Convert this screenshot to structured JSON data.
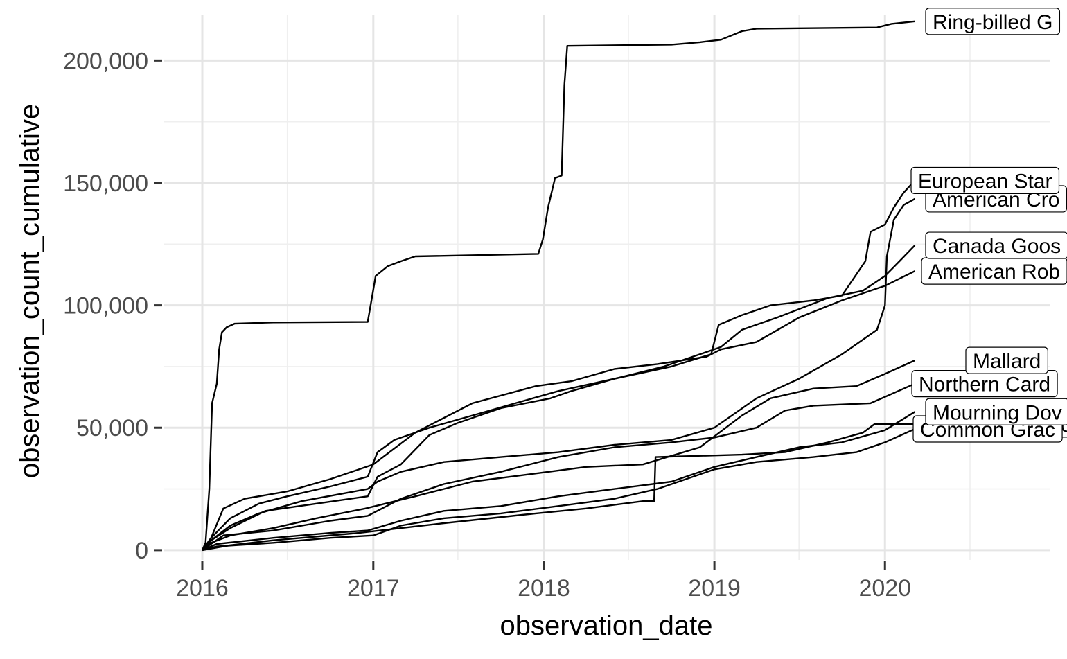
{
  "chart_data": {
    "type": "line",
    "title": "",
    "xlabel": "observation_date",
    "ylabel": "observation_count_cumulative",
    "x_ticks": [
      "2016",
      "2017",
      "2018",
      "2019",
      "2020"
    ],
    "y_ticks": [
      "0",
      "50,000",
      "100,000",
      "150,000",
      "200,000"
    ],
    "x_range": [
      "2015-10-10",
      "2020-12-20"
    ],
    "y_range": [
      -4000,
      218500
    ],
    "grid": true,
    "legend": "none",
    "series": [
      {
        "name": "Ring-billed G",
        "label_y": 216000,
        "points": [
          [
            "2016-01-01",
            0
          ],
          [
            "2016-01-08",
            3000
          ],
          [
            "2016-01-16",
            25000
          ],
          [
            "2016-01-22",
            60000
          ],
          [
            "2016-02-01",
            68000
          ],
          [
            "2016-02-06",
            82000
          ],
          [
            "2016-02-12",
            89000
          ],
          [
            "2016-02-22",
            91000
          ],
          [
            "2016-03-10",
            92500
          ],
          [
            "2016-06-01",
            93000
          ],
          [
            "2016-12-20",
            93200
          ],
          [
            "2016-12-28",
            102000
          ],
          [
            "2017-01-06",
            112000
          ],
          [
            "2017-02-01",
            116000
          ],
          [
            "2017-03-01",
            118000
          ],
          [
            "2017-04-01",
            120000
          ],
          [
            "2017-12-20",
            121000
          ],
          [
            "2017-12-30",
            127000
          ],
          [
            "2018-01-10",
            140000
          ],
          [
            "2018-01-25",
            152000
          ],
          [
            "2018-02-08",
            153000
          ],
          [
            "2018-02-14",
            190000
          ],
          [
            "2018-02-20",
            206000
          ],
          [
            "2018-10-01",
            206500
          ],
          [
            "2018-12-01",
            207500
          ],
          [
            "2019-01-15",
            208500
          ],
          [
            "2019-03-01",
            212000
          ],
          [
            "2019-04-01",
            213000
          ],
          [
            "2019-12-15",
            213500
          ],
          [
            "2020-01-15",
            215000
          ],
          [
            "2020-03-05",
            216000
          ]
        ]
      },
      {
        "name": "European Star",
        "label_y": 151000,
        "points": [
          [
            "2016-01-01",
            0
          ],
          [
            "2016-01-20",
            5000
          ],
          [
            "2016-03-01",
            13000
          ],
          [
            "2016-05-01",
            19000
          ],
          [
            "2016-07-01",
            22000
          ],
          [
            "2016-10-01",
            26000
          ],
          [
            "2016-12-20",
            30000
          ],
          [
            "2017-01-10",
            40000
          ],
          [
            "2017-02-15",
            45000
          ],
          [
            "2017-05-01",
            50000
          ],
          [
            "2017-08-01",
            55000
          ],
          [
            "2017-11-01",
            60000
          ],
          [
            "2018-02-01",
            65000
          ],
          [
            "2018-06-01",
            70000
          ],
          [
            "2018-10-01",
            75000
          ],
          [
            "2018-12-25",
            80000
          ],
          [
            "2019-01-10",
            92000
          ],
          [
            "2019-03-01",
            96000
          ],
          [
            "2019-05-01",
            100000
          ],
          [
            "2019-08-01",
            102000
          ],
          [
            "2019-10-01",
            104000
          ],
          [
            "2019-11-20",
            118000
          ],
          [
            "2019-12-01",
            130000
          ],
          [
            "2020-01-01",
            133000
          ],
          [
            "2020-01-20",
            140000
          ],
          [
            "2020-02-10",
            146000
          ],
          [
            "2020-03-05",
            151000
          ]
        ]
      },
      {
        "name": "American Cro",
        "label_y": 143500,
        "points": [
          [
            "2016-01-01",
            0
          ],
          [
            "2016-01-20",
            4000
          ],
          [
            "2016-03-01",
            10000
          ],
          [
            "2016-05-01",
            15000
          ],
          [
            "2016-08-01",
            20000
          ],
          [
            "2016-12-20",
            25000
          ],
          [
            "2017-01-10",
            28000
          ],
          [
            "2017-03-01",
            32000
          ],
          [
            "2017-06-01",
            36000
          ],
          [
            "2017-10-01",
            38000
          ],
          [
            "2018-02-01",
            40000
          ],
          [
            "2018-06-01",
            43000
          ],
          [
            "2018-10-01",
            45000
          ],
          [
            "2019-01-01",
            50000
          ],
          [
            "2019-04-01",
            62000
          ],
          [
            "2019-07-01",
            70000
          ],
          [
            "2019-10-01",
            80000
          ],
          [
            "2019-12-15",
            90000
          ],
          [
            "2020-01-01",
            100000
          ],
          [
            "2020-01-05",
            120000
          ],
          [
            "2020-01-20",
            135000
          ],
          [
            "2020-02-10",
            141000
          ],
          [
            "2020-03-05",
            143500
          ]
        ]
      },
      {
        "name": "Canada Goos",
        "label_y": 124500,
        "points": [
          [
            "2016-01-01",
            0
          ],
          [
            "2016-01-20",
            4000
          ],
          [
            "2016-03-01",
            9000
          ],
          [
            "2016-05-15",
            16000
          ],
          [
            "2016-09-01",
            19000
          ],
          [
            "2016-12-20",
            22000
          ],
          [
            "2017-01-10",
            30000
          ],
          [
            "2017-03-01",
            35000
          ],
          [
            "2017-05-01",
            47000
          ],
          [
            "2017-07-01",
            52000
          ],
          [
            "2017-10-01",
            58000
          ],
          [
            "2018-01-15",
            62000
          ],
          [
            "2018-03-01",
            65000
          ],
          [
            "2018-06-01",
            70000
          ],
          [
            "2018-09-15",
            75000
          ],
          [
            "2018-12-01",
            80000
          ],
          [
            "2019-01-15",
            83000
          ],
          [
            "2019-03-01",
            90000
          ],
          [
            "2019-05-15",
            95000
          ],
          [
            "2019-09-01",
            103000
          ],
          [
            "2019-11-15",
            106000
          ],
          [
            "2020-01-01",
            112000
          ],
          [
            "2020-02-01",
            118000
          ],
          [
            "2020-03-05",
            124500
          ]
        ]
      },
      {
        "name": "American Rob",
        "label_y": 114000,
        "points": [
          [
            "2016-01-01",
            0
          ],
          [
            "2016-01-20",
            5000
          ],
          [
            "2016-02-15",
            17000
          ],
          [
            "2016-04-01",
            21000
          ],
          [
            "2016-07-01",
            24000
          ],
          [
            "2016-10-01",
            29000
          ],
          [
            "2017-01-01",
            35000
          ],
          [
            "2017-04-01",
            48000
          ],
          [
            "2017-08-01",
            60000
          ],
          [
            "2017-12-15",
            67000
          ],
          [
            "2018-03-01",
            69000
          ],
          [
            "2018-06-01",
            74000
          ],
          [
            "2018-09-01",
            76000
          ],
          [
            "2018-12-15",
            79000
          ],
          [
            "2019-01-15",
            82000
          ],
          [
            "2019-04-01",
            85000
          ],
          [
            "2019-07-01",
            95000
          ],
          [
            "2019-10-01",
            102000
          ],
          [
            "2020-01-01",
            108000
          ],
          [
            "2020-03-05",
            114000
          ]
        ]
      },
      {
        "name": "Mallard",
        "label_y": 77500,
        "points": [
          [
            "2016-01-01",
            0
          ],
          [
            "2016-01-20",
            3000
          ],
          [
            "2016-03-01",
            6000
          ],
          [
            "2016-06-01",
            9000
          ],
          [
            "2016-09-01",
            13000
          ],
          [
            "2016-12-15",
            17000
          ],
          [
            "2017-04-01",
            22000
          ],
          [
            "2017-08-01",
            28000
          ],
          [
            "2017-12-01",
            31000
          ],
          [
            "2018-04-01",
            34000
          ],
          [
            "2018-08-01",
            35000
          ],
          [
            "2018-12-01",
            42000
          ],
          [
            "2019-03-01",
            55000
          ],
          [
            "2019-05-01",
            62000
          ],
          [
            "2019-08-01",
            66000
          ],
          [
            "2019-11-01",
            67000
          ],
          [
            "2020-01-01",
            72000
          ],
          [
            "2020-03-05",
            77500
          ]
        ]
      },
      {
        "name": "Northern Card",
        "label_y": 68000,
        "points": [
          [
            "2016-01-01",
            0
          ],
          [
            "2016-02-15",
            6000
          ],
          [
            "2016-06-01",
            8000
          ],
          [
            "2016-10-01",
            12000
          ],
          [
            "2016-12-20",
            14000
          ],
          [
            "2017-03-01",
            21000
          ],
          [
            "2017-06-01",
            27000
          ],
          [
            "2017-10-01",
            32000
          ],
          [
            "2018-02-01",
            38000
          ],
          [
            "2018-06-01",
            42000
          ],
          [
            "2018-10-01",
            44000
          ],
          [
            "2019-01-01",
            46000
          ],
          [
            "2019-04-01",
            50000
          ],
          [
            "2019-06-01",
            57000
          ],
          [
            "2019-08-01",
            59000
          ],
          [
            "2019-12-01",
            60000
          ],
          [
            "2020-03-05",
            68000
          ]
        ]
      },
      {
        "name": "Mourning Dov",
        "label_y": 56500,
        "points": [
          [
            "2016-01-01",
            0
          ],
          [
            "2016-02-01",
            2500
          ],
          [
            "2016-06-01",
            5000
          ],
          [
            "2016-10-01",
            7000
          ],
          [
            "2016-12-20",
            8000
          ],
          [
            "2017-03-01",
            12000
          ],
          [
            "2017-06-01",
            16000
          ],
          [
            "2017-10-01",
            18000
          ],
          [
            "2018-02-01",
            22000
          ],
          [
            "2018-06-01",
            25000
          ],
          [
            "2018-10-01",
            28000
          ],
          [
            "2019-01-01",
            34000
          ],
          [
            "2019-04-01",
            38000
          ],
          [
            "2019-07-01",
            42000
          ],
          [
            "2019-10-01",
            44000
          ],
          [
            "2020-01-01",
            49000
          ],
          [
            "2020-03-05",
            56500
          ]
        ]
      },
      {
        "name": "Common Grac",
        "label_y": 49500,
        "points": [
          [
            "2016-01-01",
            0
          ],
          [
            "2016-02-01",
            1500
          ],
          [
            "2016-06-01",
            3000
          ],
          [
            "2016-10-01",
            5000
          ],
          [
            "2017-01-01",
            6000
          ],
          [
            "2017-03-01",
            10000
          ],
          [
            "2017-06-01",
            13000
          ],
          [
            "2017-10-01",
            15000
          ],
          [
            "2018-02-01",
            18000
          ],
          [
            "2018-06-01",
            21000
          ],
          [
            "2018-09-01",
            25000
          ],
          [
            "2019-01-01",
            33000
          ],
          [
            "2019-04-01",
            36000
          ],
          [
            "2019-08-01",
            38000
          ],
          [
            "2019-11-01",
            40000
          ],
          [
            "2020-01-01",
            44000
          ],
          [
            "2020-03-05",
            49500
          ]
        ]
      },
      {
        "name": "Rock Pigeon",
        "label_y": 51500,
        "points": [
          [
            "2016-01-01",
            0
          ],
          [
            "2016-03-01",
            2000
          ],
          [
            "2016-06-01",
            4000
          ],
          [
            "2016-12-01",
            7000
          ],
          [
            "2017-06-01",
            11000
          ],
          [
            "2017-12-15",
            15000
          ],
          [
            "2018-04-01",
            17000
          ],
          [
            "2018-08-01",
            20000
          ],
          [
            "2018-08-25",
            20000
          ],
          [
            "2018-08-28",
            38000
          ],
          [
            "2019-03-01",
            39000
          ],
          [
            "2019-06-01",
            40000
          ],
          [
            "2019-09-01",
            44000
          ],
          [
            "2019-11-15",
            48000
          ],
          [
            "2019-12-10",
            51500
          ],
          [
            "2020-03-05",
            51500
          ]
        ]
      }
    ]
  }
}
